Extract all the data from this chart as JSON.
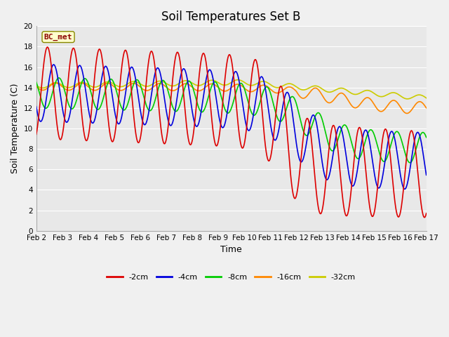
{
  "title": "Soil Temperatures Set B",
  "xlabel": "Time",
  "ylabel": "Soil Temperature (C)",
  "annotation": "BC_met",
  "ylim": [
    0,
    20
  ],
  "xlim": [
    0,
    15
  ],
  "xtick_labels": [
    "Feb 2",
    "Feb 3",
    "Feb 4",
    "Feb 5",
    "Feb 6",
    "Feb 7",
    "Feb 8",
    "Feb 9",
    "Feb 10",
    "Feb 11",
    "Feb 12",
    "Feb 13",
    "Feb 14",
    "Feb 15",
    "Feb 16",
    "Feb 17"
  ],
  "xtick_positions": [
    0,
    1,
    2,
    3,
    4,
    5,
    6,
    7,
    8,
    9,
    10,
    11,
    12,
    13,
    14,
    15
  ],
  "ytick_positions": [
    0,
    2,
    4,
    6,
    8,
    10,
    12,
    14,
    16,
    18,
    20
  ],
  "series": {
    "-2cm": {
      "color": "#dd0000",
      "lw": 1.2
    },
    "-4cm": {
      "color": "#0000dd",
      "lw": 1.2
    },
    "-8cm": {
      "color": "#00cc00",
      "lw": 1.2
    },
    "-16cm": {
      "color": "#ff8800",
      "lw": 1.2
    },
    "-32cm": {
      "color": "#cccc00",
      "lw": 1.2
    }
  },
  "fig_bg": "#f0f0f0",
  "plot_bg": "#e8e8e8",
  "grid_color": "#ffffff",
  "title_fontsize": 12,
  "axis_label_fontsize": 9,
  "tick_fontsize": 7.5
}
